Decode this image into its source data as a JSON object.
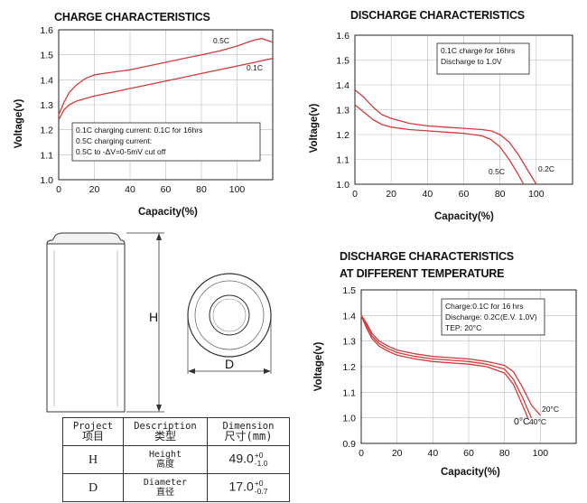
{
  "chart_data": [
    {
      "type": "line",
      "title": "CHARGE CHARACTERISTICS",
      "xlabel": "Capacity(%)",
      "ylabel": "Voltage(v)",
      "xlim": [
        0,
        120
      ],
      "ylim": [
        1.0,
        1.6
      ],
      "xticks": [
        "0",
        "20",
        "40",
        "60",
        "80",
        "100"
      ],
      "yticks": [
        "1.0",
        "1.1",
        "1.2",
        "1.3",
        "1.4",
        "1.5",
        "1.6"
      ],
      "grid": true,
      "color": "#d13b3b",
      "series": [
        {
          "name": "0.5C",
          "x": [
            0,
            3,
            6,
            10,
            15,
            20,
            30,
            40,
            50,
            60,
            70,
            80,
            90,
            100,
            106,
            110,
            114,
            116,
            120
          ],
          "y": [
            1.26,
            1.31,
            1.35,
            1.38,
            1.405,
            1.42,
            1.43,
            1.44,
            1.455,
            1.47,
            1.485,
            1.5,
            1.515,
            1.535,
            1.55,
            1.56,
            1.565,
            1.56,
            1.55
          ]
        },
        {
          "name": "0.1C",
          "x": [
            0,
            3,
            6,
            10,
            15,
            20,
            30,
            40,
            50,
            60,
            70,
            80,
            90,
            100,
            110,
            116,
            120
          ],
          "y": [
            1.24,
            1.28,
            1.3,
            1.315,
            1.325,
            1.335,
            1.35,
            1.365,
            1.38,
            1.395,
            1.41,
            1.425,
            1.44,
            1.455,
            1.47,
            1.48,
            1.485
          ]
        }
      ],
      "legend_lines": [
        "0.1C charging current: 0.1C for 16hrs",
        "0.5C charging current:",
        "0.5C    to    -ΔV=0-5mV cut off"
      ]
    },
    {
      "type": "line",
      "title": "DISCHARGE CHARACTERISTICS",
      "xlabel": "Capacity(%)",
      "ylabel": "Voltage(v)",
      "xlim": [
        0,
        120
      ],
      "ylim": [
        1.0,
        1.6
      ],
      "xticks": [
        "0",
        "20",
        "40",
        "60",
        "80",
        "100"
      ],
      "yticks": [
        "1.0",
        "1.1",
        "1.2",
        "1.3",
        "1.4",
        "1.5",
        "1.6"
      ],
      "grid": true,
      "color": "#d13b3b",
      "series": [
        {
          "name": "0.2C",
          "x": [
            0,
            5,
            10,
            15,
            20,
            30,
            40,
            50,
            60,
            70,
            75,
            80,
            85,
            90,
            95,
            100
          ],
          "y": [
            1.38,
            1.35,
            1.31,
            1.28,
            1.265,
            1.245,
            1.235,
            1.23,
            1.225,
            1.22,
            1.215,
            1.2,
            1.17,
            1.12,
            1.06,
            1.0
          ]
        },
        {
          "name": "0.5C",
          "x": [
            0,
            5,
            10,
            15,
            20,
            30,
            40,
            50,
            60,
            70,
            75,
            80,
            85,
            90,
            93
          ],
          "y": [
            1.32,
            1.29,
            1.26,
            1.24,
            1.23,
            1.22,
            1.215,
            1.21,
            1.205,
            1.195,
            1.18,
            1.15,
            1.1,
            1.04,
            1.0
          ]
        }
      ],
      "legend_lines": [
        "0.1C charge for 16hrs",
        "Discharge to 1.0V"
      ]
    },
    {
      "type": "line",
      "title": "DISCHARGE CHARACTERISTICS",
      "subtitle": "AT DIFFERENT TEMPERATURE",
      "xlabel": "Capacity(%)",
      "ylabel": "Voltage(v)",
      "xlim": [
        0,
        120
      ],
      "ylim": [
        0.9,
        1.5
      ],
      "xticks": [
        "0",
        "20",
        "40",
        "60",
        "80",
        "100"
      ],
      "yticks": [
        "0.9",
        "1.0",
        "1.1",
        "1.2",
        "1.3",
        "1.4",
        "1.5"
      ],
      "grid": true,
      "color": "#d13b3b",
      "series": [
        {
          "name": "20°C",
          "x": [
            0,
            3,
            6,
            10,
            15,
            20,
            30,
            40,
            50,
            60,
            70,
            80,
            85,
            90,
            95,
            100
          ],
          "y": [
            1.4,
            1.37,
            1.33,
            1.3,
            1.28,
            1.265,
            1.25,
            1.24,
            1.235,
            1.23,
            1.22,
            1.205,
            1.18,
            1.12,
            1.05,
            1.01
          ]
        },
        {
          "name": "40°C",
          "x": [
            0,
            3,
            6,
            10,
            15,
            20,
            30,
            40,
            50,
            60,
            70,
            80,
            85,
            90,
            95
          ],
          "y": [
            1.4,
            1.36,
            1.32,
            1.29,
            1.27,
            1.255,
            1.24,
            1.23,
            1.225,
            1.22,
            1.21,
            1.19,
            1.15,
            1.08,
            1.0
          ]
        },
        {
          "name": "0°C",
          "x": [
            0,
            3,
            6,
            10,
            15,
            20,
            30,
            40,
            50,
            60,
            70,
            80,
            85,
            90,
            93
          ],
          "y": [
            1.4,
            1.35,
            1.31,
            1.28,
            1.26,
            1.245,
            1.23,
            1.22,
            1.215,
            1.21,
            1.2,
            1.175,
            1.13,
            1.05,
            1.0
          ]
        }
      ],
      "legend_lines": [
        "Charge:0.1C for 16 hrs",
        "Discharge: 0.2C(E.V. 1.0V)",
        "TEP: 20°C"
      ]
    }
  ],
  "drawing": {
    "height_label": "H",
    "diameter_label": "D"
  },
  "spec_table": {
    "headers": [
      {
        "en": "Project",
        "zh": "项目"
      },
      {
        "en": "Description",
        "zh": "类型"
      },
      {
        "en": "Dimension",
        "zh": "尺寸(mm)"
      }
    ],
    "rows": [
      {
        "symbol": "H",
        "en": "Height",
        "zh": "高度",
        "value": "49.0",
        "tol_plus": "+0",
        "tol_minus": "-1.0"
      },
      {
        "symbol": "D",
        "en": "Diameter",
        "zh": "直径",
        "value": "17.0",
        "tol_plus": "+0",
        "tol_minus": "-0.7"
      }
    ]
  }
}
